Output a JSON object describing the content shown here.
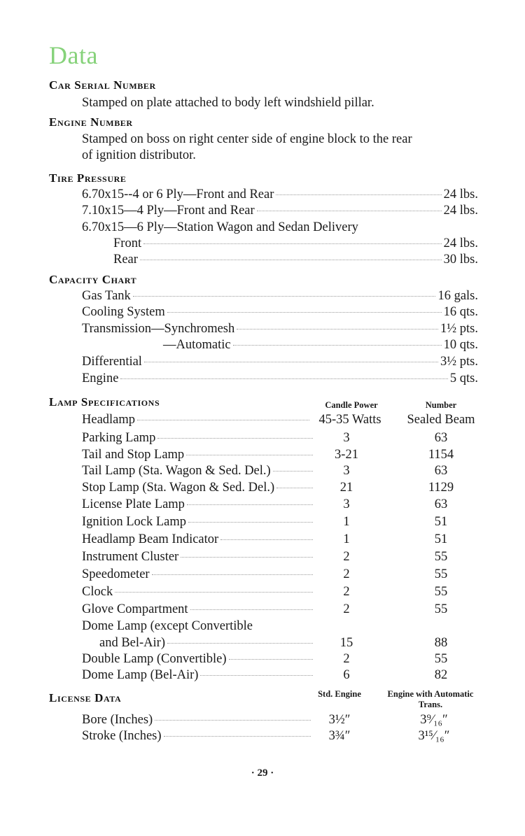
{
  "title": "Data",
  "car_serial": {
    "heading": "Car Serial Number",
    "text": "Stamped on plate attached to body left windshield pillar."
  },
  "engine_number": {
    "heading": "Engine Number",
    "lines": [
      "Stamped on boss on right center side of engine block to the rear",
      "of ignition distributor."
    ]
  },
  "tire_pressure": {
    "heading": "Tire Pressure",
    "rows": [
      {
        "label": "6.70x15--4 or 6 Ply—Front and Rear",
        "value": "24 lbs."
      },
      {
        "label": "7.10x15—4 Ply—Front and Rear",
        "value": "24 lbs."
      },
      {
        "label": "6.70x15—6 Ply—Station Wagon and Sedan Delivery",
        "value": null
      },
      {
        "label": "Front",
        "value": "24 lbs."
      },
      {
        "label": "Rear",
        "value": "30 lbs."
      }
    ]
  },
  "capacity_chart": {
    "heading": "Capacity Chart",
    "rows": [
      {
        "label": "Gas Tank",
        "value": "16 gals."
      },
      {
        "label": "Cooling System",
        "value": "16 qts."
      },
      {
        "label": "Transmission—Synchromesh",
        "value": "1½ pts."
      },
      {
        "label": "—Automatic",
        "value": "10 qts."
      },
      {
        "label": "Differential",
        "value": "3½ pts."
      },
      {
        "label": "Engine",
        "value": "5 qts."
      }
    ]
  },
  "lamp_specifications": {
    "heading": "Lamp Specifications",
    "columns": [
      "Candle Power",
      "Number"
    ],
    "rows": [
      {
        "label": "Headlamp",
        "candle_power": "45-35 Watts",
        "number": "Sealed Beam"
      },
      {
        "label": "Parking Lamp",
        "candle_power": "3",
        "number": "63"
      },
      {
        "label": "Tail and Stop Lamp",
        "candle_power": "3-21",
        "number": "1154"
      },
      {
        "label": "Tail Lamp (Sta. Wagon & Sed. Del.)",
        "candle_power": "3",
        "number": "63"
      },
      {
        "label": "Stop Lamp (Sta. Wagon & Sed. Del.)",
        "candle_power": "21",
        "number": "1129"
      },
      {
        "label": "License Plate Lamp",
        "candle_power": "3",
        "number": "63"
      },
      {
        "label": "Ignition Lock Lamp",
        "candle_power": "1",
        "number": "51"
      },
      {
        "label": "Headlamp Beam Indicator",
        "candle_power": "1",
        "number": "51"
      },
      {
        "label": "Instrument Cluster",
        "candle_power": "2",
        "number": "55"
      },
      {
        "label": "Speedometer",
        "candle_power": "2",
        "number": "55"
      },
      {
        "label": "Clock",
        "candle_power": "2",
        "number": "55"
      },
      {
        "label": "Glove Compartment",
        "candle_power": "2",
        "number": "55"
      },
      {
        "label": "Dome Lamp (except Convertible",
        "candle_power": null,
        "number": null
      },
      {
        "label": "and Bel-Air)",
        "candle_power": "15",
        "number": "88"
      },
      {
        "label": "Double Lamp (Convertible)",
        "candle_power": "2",
        "number": "55"
      },
      {
        "label": "Dome Lamp (Bel-Air)",
        "candle_power": "6",
        "number": "82"
      }
    ]
  },
  "license_data": {
    "heading": "License Data",
    "columns": [
      "Std. Engine",
      "Engine with Automatic Trans."
    ],
    "rows": [
      {
        "label": "Bore (Inches)",
        "std": "3½″",
        "auto": "3⁹⁄₁₆″"
      },
      {
        "label": "Stroke (Inches)",
        "std": "3¾″",
        "auto": "3¹⁵⁄₁₆″"
      }
    ]
  },
  "page_number": "· 29 ·",
  "colors": {
    "title": "#86d27a",
    "text": "#1a1a1a"
  }
}
